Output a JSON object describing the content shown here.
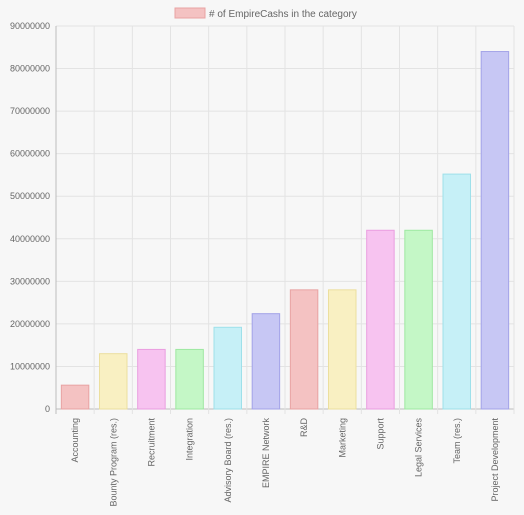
{
  "chart_data": {
    "type": "bar",
    "title": "",
    "xlabel": "",
    "ylabel": "",
    "legend": {
      "placement": "top-center",
      "label": "# of EmpireCashs in the category",
      "color": "#f4c2c2"
    },
    "grid": true,
    "ylim": [
      0,
      90000000
    ],
    "yticks": [
      "0",
      "10000000",
      "20000000",
      "30000000",
      "40000000",
      "50000000",
      "60000000",
      "70000000",
      "80000000",
      "90000000"
    ],
    "categories": [
      "Accounting",
      "Bounty Program (res.)",
      "Recruitment",
      "Integration",
      "Advisory Board (res.)",
      "EMPIRE Network",
      "R&D",
      "Marketing",
      "Support",
      "Legal Services",
      "Team (res.)",
      "Project Development"
    ],
    "series": [
      {
        "name": "# of EmpireCashs in the category",
        "values": [
          5600000,
          13000000,
          14000000,
          14000000,
          19200000,
          22400000,
          28000000,
          28000000,
          42000000,
          42000000,
          55200000,
          84000000
        ],
        "fill_colors": [
          "#f4c2c2",
          "#f9f0c2",
          "#f7c3f0",
          "#c4f7c6",
          "#c6f0f7",
          "#c7c7f4",
          "#f4c2c2",
          "#f9f0c2",
          "#f7c3f0",
          "#c4f7c6",
          "#c6f0f7",
          "#c7c7f4"
        ],
        "border_colors": [
          "#e8a3a3",
          "#ecdf9e",
          "#ea9ee0",
          "#9ee8a1",
          "#9ee0ea",
          "#a3a3e8",
          "#e8a3a3",
          "#ecdf9e",
          "#ea9ee0",
          "#9ee8a1",
          "#9ee0ea",
          "#a3a3e8"
        ]
      }
    ]
  }
}
